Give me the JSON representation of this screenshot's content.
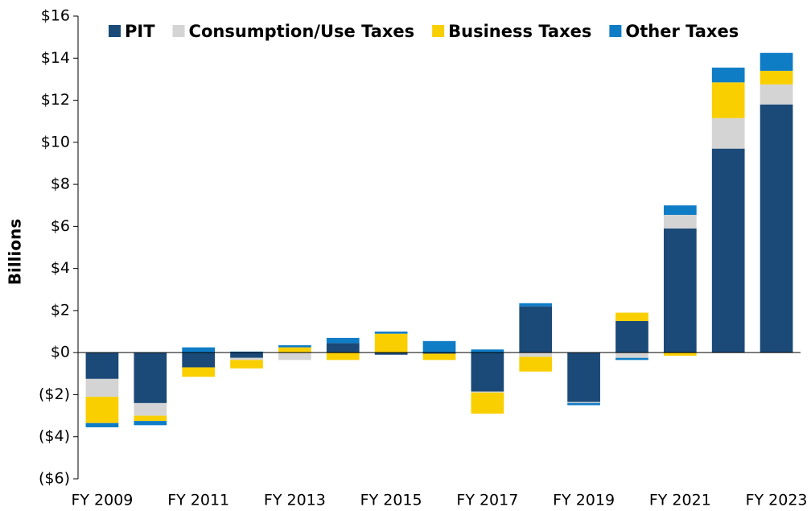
{
  "chart_data": {
    "type": "stacked_bar",
    "y_label": "Billions",
    "categories": [
      "FY 2009",
      null,
      "FY 2011",
      null,
      "FY 2013",
      null,
      "FY 2015",
      null,
      "FY 2017",
      null,
      "FY 2019",
      null,
      "FY 2021",
      null,
      "FY 2023"
    ],
    "series": [
      {
        "name": "PIT",
        "color": "#1b4a78",
        "values": [
          -1.25,
          -2.4,
          -0.7,
          -0.25,
          0,
          0.45,
          -0.1,
          -0.05,
          -1.85,
          2.2,
          -2.35,
          1.5,
          5.9,
          9.7,
          11.8
        ]
      },
      {
        "name": "Consumption/Use Taxes",
        "color": "#d4d4d4",
        "values": [
          -0.85,
          -0.6,
          0,
          -0.1,
          -0.35,
          0,
          0,
          0,
          -0.05,
          -0.2,
          -0.05,
          -0.25,
          0.65,
          1.45,
          0.95
        ]
      },
      {
        "name": "Business Taxes",
        "color": "#f9cf00",
        "values": [
          -1.25,
          -0.25,
          -0.45,
          -0.4,
          0.25,
          -0.35,
          0.9,
          -0.3,
          -1.0,
          -0.7,
          0,
          0.4,
          -0.15,
          1.7,
          0.65
        ]
      },
      {
        "name": "Other Taxes",
        "color": "#0f7cc6",
        "values": [
          -0.2,
          -0.2,
          0.25,
          0.05,
          0.1,
          0.25,
          0.1,
          0.55,
          0.15,
          0.15,
          -0.1,
          -0.1,
          0.45,
          0.7,
          0.85
        ]
      }
    ],
    "ylim": [
      -6,
      16
    ],
    "yticks": [
      {
        "value": -6,
        "label": "($6)"
      },
      {
        "value": -4,
        "label": "($4)"
      },
      {
        "value": -2,
        "label": "($2)"
      },
      {
        "value": 0,
        "label": "$0"
      },
      {
        "value": 2,
        "label": "$2"
      },
      {
        "value": 4,
        "label": "$4"
      },
      {
        "value": 6,
        "label": "$6"
      },
      {
        "value": 8,
        "label": "$8"
      },
      {
        "value": 10,
        "label": "$10"
      },
      {
        "value": 12,
        "label": "$12"
      },
      {
        "value": 14,
        "label": "$14"
      },
      {
        "value": 16,
        "label": "$16"
      }
    ],
    "legend": "top"
  }
}
